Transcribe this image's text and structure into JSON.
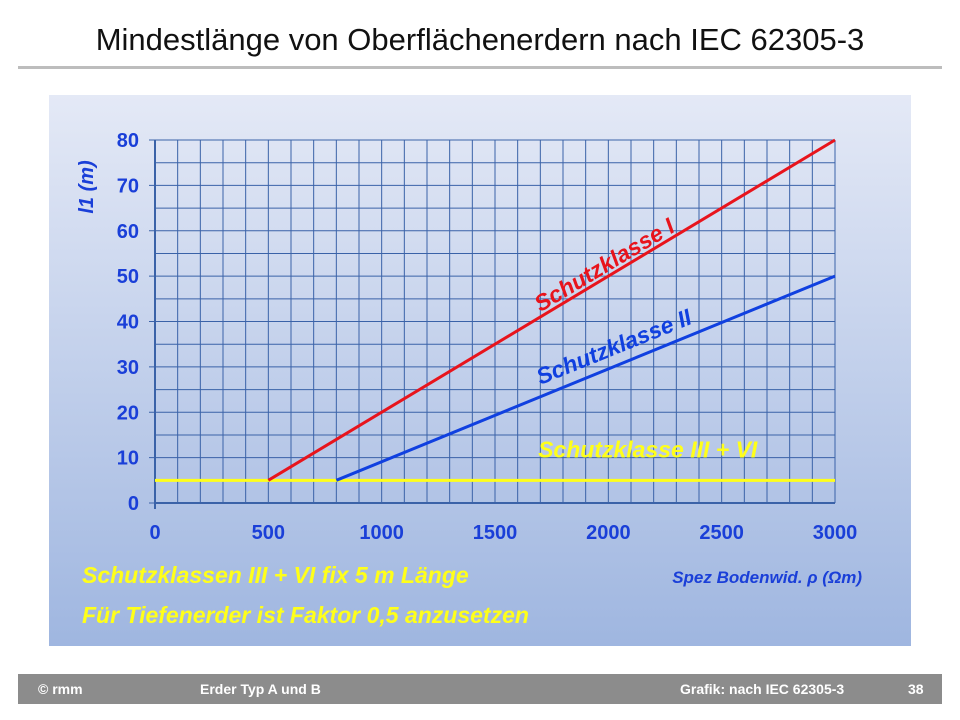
{
  "title": "Mindestlänge von Oberflächenerdern nach IEC 62305-3",
  "notes": [
    "Schutzklassen III + VI fix 5 m Länge",
    "Für Tiefenerder ist Faktor 0,5 anzusetzen"
  ],
  "footer": {
    "copyright": "© rmm",
    "topic": "Erder Typ A und B",
    "source": "Grafik: nach IEC 62305-3",
    "page": "38"
  },
  "chart_data": {
    "type": "line",
    "title": "Mindestlänge von Oberflächenerdern nach IEC 62305-3",
    "xlabel": "Spez Bodenwid. ρ (Ωm)",
    "ylabel": "l1 (m)",
    "ylabel_main": "l",
    "ylabel_sub": "1",
    "ylabel_unit": " (m)",
    "xlim": [
      0,
      3000
    ],
    "ylim": [
      0,
      80
    ],
    "xticks": [
      0,
      500,
      1000,
      1500,
      2000,
      2500,
      3000
    ],
    "yticks": [
      0,
      10,
      20,
      30,
      40,
      50,
      60,
      70,
      80
    ],
    "grid": {
      "x_step": 100,
      "y_step": 5
    },
    "series": [
      {
        "name": "Schutzklasse  I",
        "color": "#e8141c",
        "points": [
          [
            500,
            5
          ],
          [
            3000,
            80
          ]
        ]
      },
      {
        "name": "Schutzklasse  II",
        "color": "#1040e0",
        "points": [
          [
            800,
            5
          ],
          [
            3000,
            50
          ]
        ]
      },
      {
        "name": "Schutzklasse  III + VI",
        "color": "#ffff1a",
        "points": [
          [
            0,
            5
          ],
          [
            3000,
            5
          ]
        ]
      }
    ],
    "colors": {
      "axis": "#1a3fd8",
      "grid": "#3a62a8"
    }
  }
}
